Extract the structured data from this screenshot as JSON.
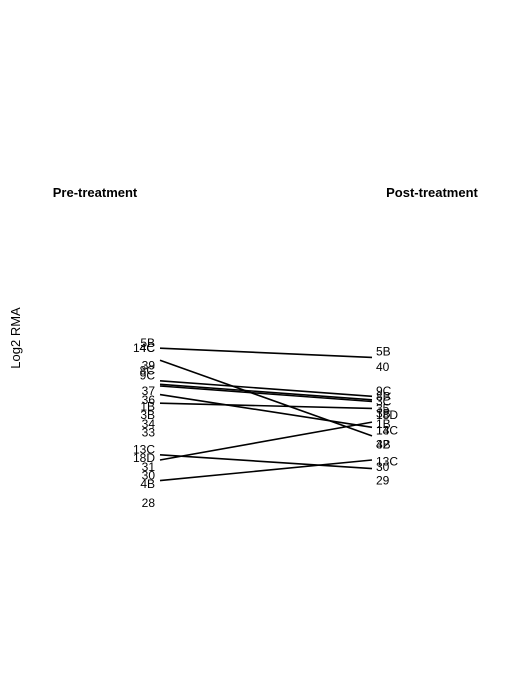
{
  "chart_data": {
    "type": "line",
    "subtype": "slopegraph",
    "columns": [
      "Pre-treatment",
      "Post-treatment"
    ],
    "ylabel": "Log2 RMA",
    "series_color": "#000000",
    "pre_labels": [
      {
        "text": "5B",
        "y": 1.0
      },
      {
        "text": "14C",
        "y": 0.985
      },
      {
        "text": "4C",
        "y": 0.985
      },
      {
        "text": "39",
        "y": 0.935
      },
      {
        "text": "8C",
        "y": 0.92
      },
      {
        "text": "9C",
        "y": 0.905
      },
      {
        "text": "37",
        "y": 0.86
      },
      {
        "text": "36",
        "y": 0.835
      },
      {
        "text": "1B",
        "y": 0.815
      },
      {
        "text": "3B",
        "y": 0.79
      },
      {
        "text": "34",
        "y": 0.765
      },
      {
        "text": "33",
        "y": 0.74
      },
      {
        "text": "13C",
        "y": 0.69
      },
      {
        "text": "18D",
        "y": 0.665
      },
      {
        "text": "31",
        "y": 0.64
      },
      {
        "text": "30",
        "y": 0.615
      },
      {
        "text": "4B",
        "y": 0.59
      },
      {
        "text": "28",
        "y": 0.535
      }
    ],
    "post_labels": [
      {
        "text": "5B",
        "y": 0.975
      },
      {
        "text": "40",
        "y": 0.93
      },
      {
        "text": "9C",
        "y": 0.86
      },
      {
        "text": "8B",
        "y": 0.845
      },
      {
        "text": "3C",
        "y": 0.83
      },
      {
        "text": "35",
        "y": 0.81
      },
      {
        "text": "3B",
        "y": 0.795
      },
      {
        "text": "18D",
        "y": 0.79
      },
      {
        "text": "1B",
        "y": 0.765
      },
      {
        "text": "14C",
        "y": 0.745
      },
      {
        "text": "13",
        "y": 0.745
      },
      {
        "text": "32",
        "y": 0.705
      },
      {
        "text": "4B",
        "y": 0.705
      },
      {
        "text": "13C",
        "y": 0.655
      },
      {
        "text": "30",
        "y": 0.64
      },
      {
        "text": "29",
        "y": 0.6
      }
    ],
    "lines": [
      {
        "pre": 0.985,
        "post": 0.958
      },
      {
        "pre": 0.95,
        "post": 0.73
      },
      {
        "pre": 0.89,
        "post": 0.845
      },
      {
        "pre": 0.88,
        "post": 0.835
      },
      {
        "pre": 0.875,
        "post": 0.83
      },
      {
        "pre": 0.85,
        "post": 0.755
      },
      {
        "pre": 0.825,
        "post": 0.81
      },
      {
        "pre": 0.675,
        "post": 0.635
      },
      {
        "pre": 0.66,
        "post": 0.77
      },
      {
        "pre": 0.6,
        "post": 0.66
      }
    ]
  }
}
